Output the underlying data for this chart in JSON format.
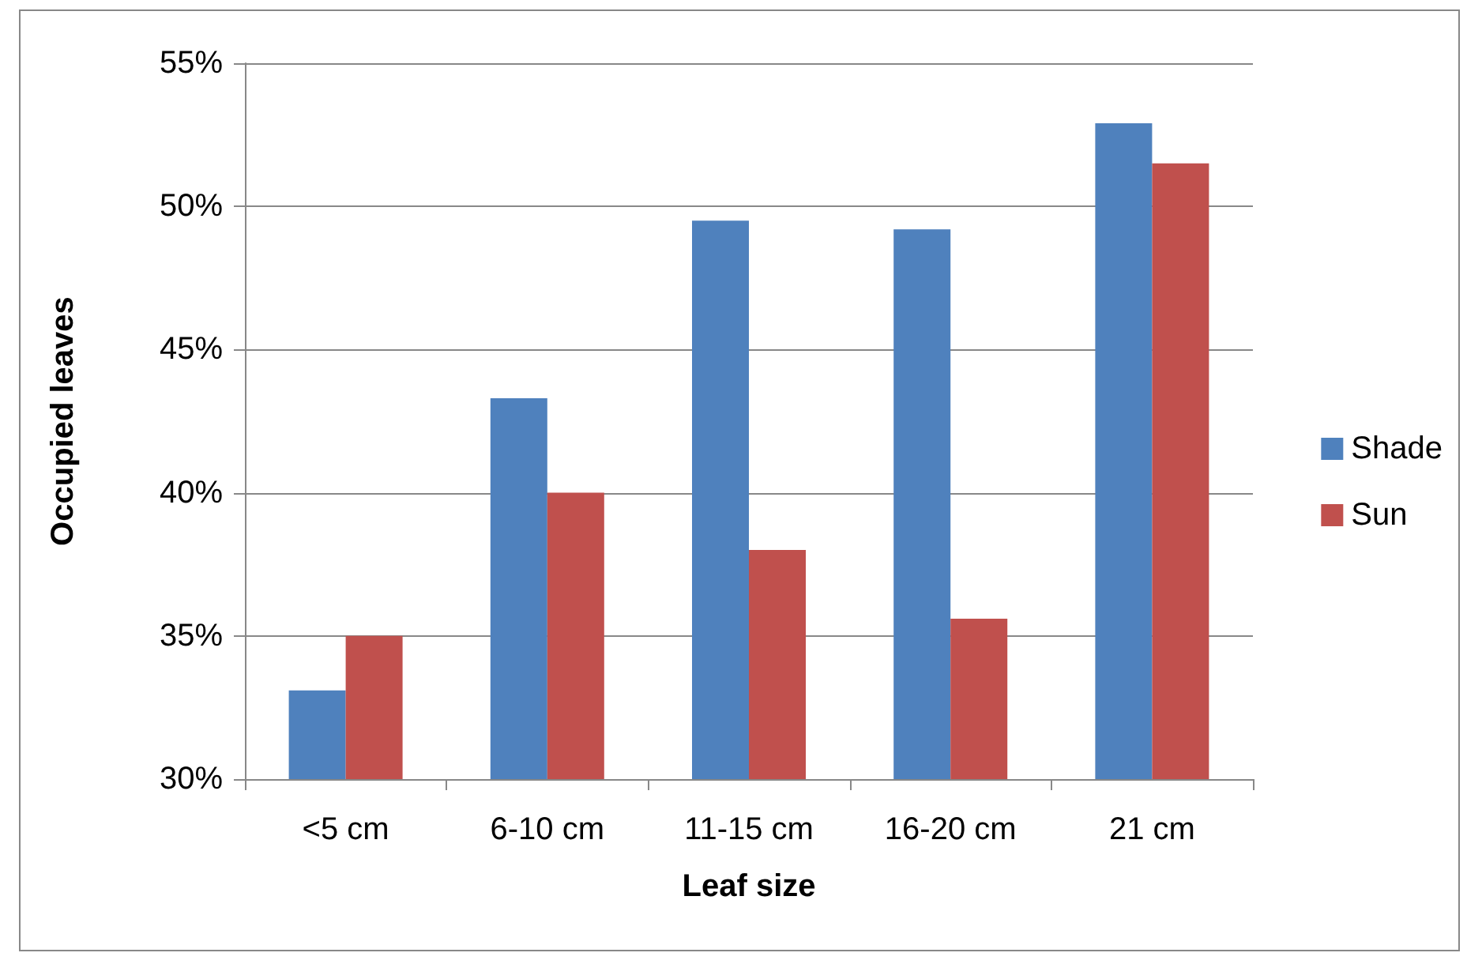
{
  "chart_data": {
    "type": "bar",
    "xlabel": "Leaf size",
    "ylabel": "Occupied leaves",
    "categories": [
      "<5 cm",
      "6-10 cm",
      "11-15 cm",
      "16-20 cm",
      "21 cm"
    ],
    "series": [
      {
        "name": "Shade",
        "color": "#4f81bd",
        "values": [
          33.1,
          43.3,
          49.5,
          49.2,
          52.9
        ]
      },
      {
        "name": "Sun",
        "color": "#c0504d",
        "values": [
          35.0,
          40.0,
          38.0,
          35.6,
          51.5
        ]
      }
    ],
    "ylim": [
      30,
      55
    ],
    "yticks": [
      {
        "value": 30,
        "label": "30%"
      },
      {
        "value": 35,
        "label": "35%"
      },
      {
        "value": 40,
        "label": "40%"
      },
      {
        "value": 45,
        "label": "45%"
      },
      {
        "value": 50,
        "label": "50%"
      },
      {
        "value": 55,
        "label": "55%"
      }
    ],
    "grid": "y",
    "legend": "right"
  }
}
